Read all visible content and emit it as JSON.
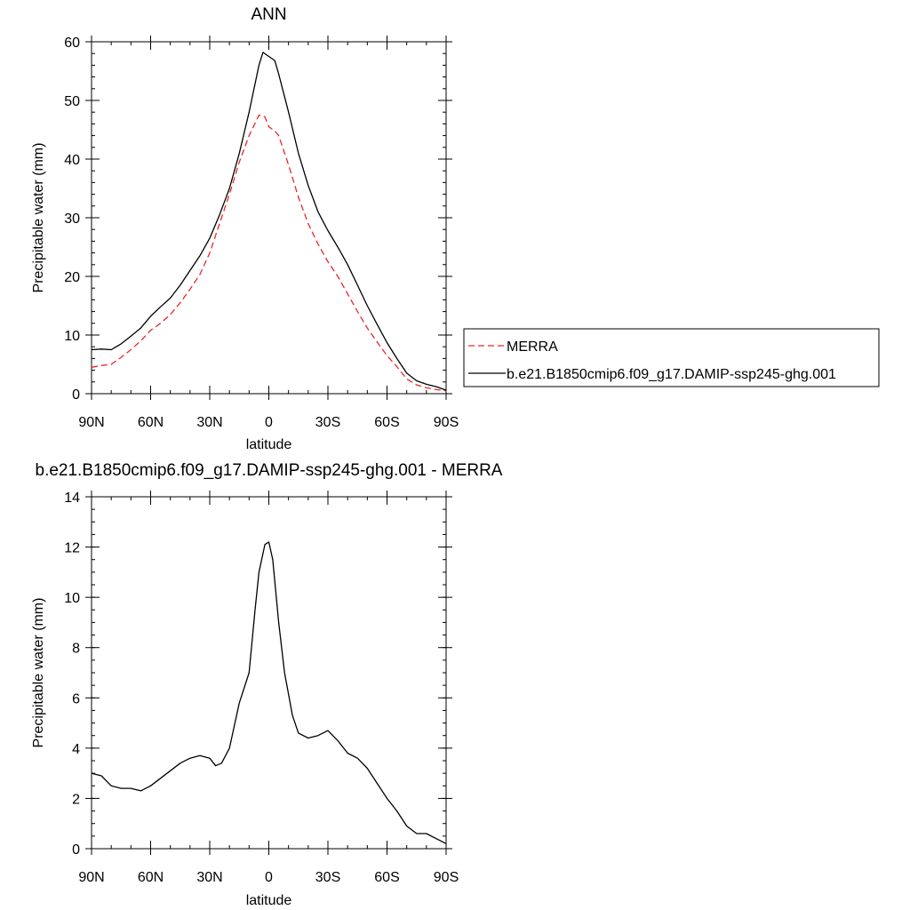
{
  "chart_data": [
    {
      "type": "line",
      "title": "ANN",
      "xlabel": "latitude",
      "ylabel": "Precipitable water (mm)",
      "xlim": [
        90,
        -90
      ],
      "ylim": [
        0,
        60
      ],
      "x_ticks": [
        {
          "value": 90,
          "label": "90N"
        },
        {
          "value": 60,
          "label": "60N"
        },
        {
          "value": 30,
          "label": "30N"
        },
        {
          "value": 0,
          "label": "0"
        },
        {
          "value": -30,
          "label": "30S"
        },
        {
          "value": -60,
          "label": "60S"
        },
        {
          "value": -90,
          "label": "90S"
        }
      ],
      "y_ticks": [
        0,
        10,
        20,
        30,
        40,
        50,
        60
      ],
      "y_minor_step": 2,
      "x_minor_step": 10,
      "legend_position": "right",
      "series": [
        {
          "name": "MERRA",
          "color": "#e8262b",
          "dash": "dashed",
          "x": [
            90,
            85,
            80,
            75,
            70,
            65,
            60,
            55,
            50,
            45,
            40,
            35,
            30,
            25,
            20,
            15,
            10,
            5,
            2,
            0,
            -3,
            -5,
            -10,
            -15,
            -20,
            -25,
            -30,
            -35,
            -40,
            -45,
            -50,
            -55,
            -60,
            -65,
            -70,
            -75,
            -80,
            -85,
            -90
          ],
          "y": [
            4.5,
            4.8,
            5.0,
            6.2,
            7.5,
            9.0,
            10.8,
            12.0,
            13.5,
            15.5,
            17.8,
            20.3,
            24.0,
            29.0,
            34.0,
            39.5,
            44.0,
            47.5,
            47.2,
            45.5,
            44.8,
            44.0,
            39.0,
            33.5,
            29.0,
            25.5,
            22.5,
            20.0,
            17.0,
            14.0,
            11.2,
            8.8,
            6.5,
            4.6,
            2.5,
            1.5,
            1.0,
            0.7,
            0.5
          ]
        },
        {
          "name": "b.e21.B1850cmip6.f09_g17.DAMIP-ssp245-ghg.001",
          "color": "#000000",
          "dash": "solid",
          "x": [
            90,
            85,
            80,
            75,
            70,
            65,
            60,
            55,
            50,
            45,
            40,
            35,
            30,
            25,
            20,
            15,
            10,
            5,
            3,
            0,
            -3,
            -5,
            -10,
            -15,
            -20,
            -25,
            -30,
            -35,
            -40,
            -45,
            -50,
            -55,
            -60,
            -65,
            -70,
            -75,
            -80,
            -85,
            -90
          ],
          "y": [
            7.5,
            7.6,
            7.5,
            8.5,
            9.8,
            11.2,
            13.2,
            14.8,
            16.3,
            18.5,
            21.0,
            23.5,
            26.5,
            30.5,
            35.0,
            41.0,
            48.0,
            56.0,
            58.2,
            57.5,
            56.8,
            54.5,
            48.0,
            41.0,
            35.5,
            31.0,
            27.8,
            25.0,
            22.0,
            18.5,
            15.0,
            11.8,
            8.7,
            6.0,
            3.5,
            2.2,
            1.6,
            1.2,
            0.6
          ]
        }
      ]
    },
    {
      "type": "line",
      "title": "b.e21.B1850cmip6.f09_g17.DAMIP-ssp245-ghg.001 - MERRA",
      "xlabel": "latitude",
      "ylabel": "Precipitable water (mm)",
      "xlim": [
        90,
        -90
      ],
      "ylim": [
        0,
        14
      ],
      "x_ticks": [
        {
          "value": 90,
          "label": "90N"
        },
        {
          "value": 60,
          "label": "60N"
        },
        {
          "value": 30,
          "label": "30N"
        },
        {
          "value": 0,
          "label": "0"
        },
        {
          "value": -30,
          "label": "30S"
        },
        {
          "value": -60,
          "label": "60S"
        },
        {
          "value": -90,
          "label": "90S"
        }
      ],
      "y_ticks": [
        0,
        2,
        4,
        6,
        8,
        10,
        12,
        14
      ],
      "y_minor_step": 0.5,
      "x_minor_step": 10,
      "series": [
        {
          "color": "#000000",
          "dash": "solid",
          "x": [
            90,
            85,
            80,
            75,
            70,
            65,
            60,
            55,
            50,
            45,
            40,
            35,
            30,
            27,
            24,
            20,
            15,
            10,
            7,
            5,
            2,
            0,
            -2,
            -5,
            -8,
            -12,
            -15,
            -20,
            -25,
            -30,
            -35,
            -40,
            -45,
            -50,
            -55,
            -60,
            -65,
            -70,
            -75,
            -80,
            -85,
            -90
          ],
          "y": [
            3.0,
            2.9,
            2.5,
            2.4,
            2.4,
            2.3,
            2.5,
            2.8,
            3.1,
            3.4,
            3.6,
            3.7,
            3.6,
            3.3,
            3.4,
            4.0,
            5.8,
            7.0,
            9.5,
            11.0,
            12.1,
            12.2,
            11.5,
            9.0,
            7.0,
            5.3,
            4.6,
            4.4,
            4.5,
            4.7,
            4.3,
            3.8,
            3.6,
            3.2,
            2.6,
            2.0,
            1.5,
            0.9,
            0.6,
            0.6,
            0.4,
            0.2
          ]
        }
      ]
    }
  ]
}
